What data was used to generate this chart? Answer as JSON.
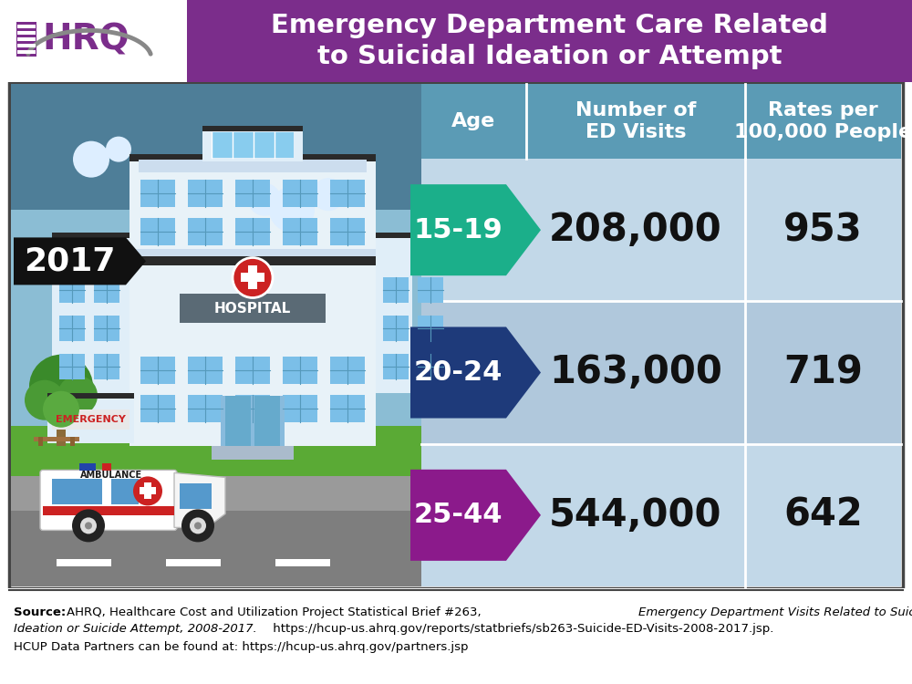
{
  "title_line1": "Emergency Department Care Related",
  "title_line2": "to Suicidal Ideation or Attempt",
  "title_bg_color": "#7B2D8B",
  "title_text_color": "#FFFFFF",
  "header_bg_color": "#5B9BB5",
  "header_bg_dark": "#4A7A8A",
  "header_text_color": "#FFFFFF",
  "header_col1": "Age",
  "header_col2": "Number of\nED Visits",
  "header_col3": "Rates per\n100,000 People",
  "year_label": "2017",
  "year_bg_color": "#111111",
  "year_text_color": "#FFFFFF",
  "rows": [
    {
      "age": "15-19",
      "visits": "208,000",
      "rate": "953",
      "arrow_color": "#1BAF8A",
      "row_bg": "#C2D8E8"
    },
    {
      "age": "20-24",
      "visits": "163,000",
      "rate": "719",
      "arrow_color": "#1E3A7A",
      "row_bg": "#B0C8DC"
    },
    {
      "age": "25-44",
      "visits": "544,000",
      "rate": "642",
      "arrow_color": "#8B1A8B",
      "row_bg": "#C2D8E8"
    }
  ],
  "outer_border_color": "#444444",
  "sky_color": "#5B8FA8",
  "sky_light_color": "#A8C8DC",
  "ground_color": "#5A9A3A",
  "road_color": "#888888",
  "building_color": "#DDEEFF",
  "building_accent": "#CCDDEE",
  "window_color": "#7BBFE8",
  "source_bold": "Source:",
  "source_normal": " AHRQ, Healthcare Cost and Utilization Project Statistical Brief #263, ",
  "source_italic": "Emergency Department Visits Related to Suicidal",
  "source_line2_italic": "Ideation or Suicide Attempt, 2008-2017.",
  "source_line2_normal": " https://hcup-us.ahrq.gov/reports/statbriefs/sb263-Suicide-ED-Visits-2008-2017.jsp.",
  "source_line3": "HCUP Data Partners can be found at: https://hcup-us.ahrq.gov/partners.jsp"
}
